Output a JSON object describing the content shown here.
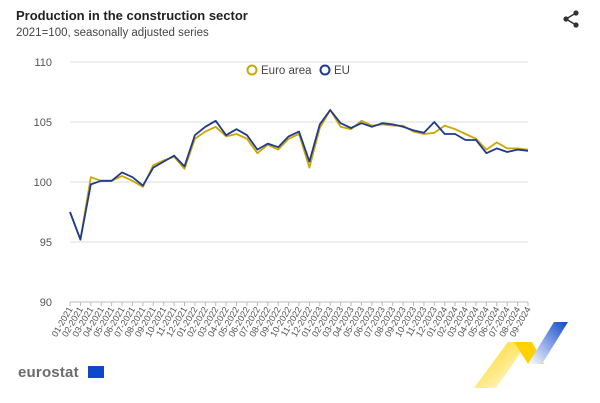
{
  "header": {
    "title": "Production in the construction sector",
    "subtitle": "2021=100, seasonally adjusted series"
  },
  "footer": {
    "logo_text": "eurostat"
  },
  "colors": {
    "euro_area": "#c9a800",
    "eu": "#1f3a93",
    "grid": "#dddddd",
    "axis": "#bbbbbb",
    "text": "#555555"
  },
  "icons": {
    "share": "share-icon",
    "flag": "eu-flag-icon",
    "brand": "eurostat-brand-stripes"
  },
  "chart_data": {
    "type": "line",
    "title": "Production in the construction sector",
    "subtitle": "2021=100, seasonally adjusted series",
    "ylim": [
      90,
      110
    ],
    "yticks": [
      90,
      95,
      100,
      105,
      110
    ],
    "grid": true,
    "legend": "top",
    "x": [
      "01-2021",
      "02-2021",
      "03-2021",
      "04-2021",
      "05-2021",
      "06-2021",
      "07-2021",
      "08-2021",
      "09-2021",
      "10-2021",
      "11-2021",
      "12-2021",
      "01-2022",
      "02-2022",
      "03-2022",
      "04-2022",
      "05-2022",
      "06-2022",
      "07-2022",
      "08-2022",
      "09-2022",
      "10-2022",
      "11-2022",
      "12-2022",
      "01-2023",
      "02-2023",
      "03-2023",
      "04-2023",
      "05-2023",
      "06-2023",
      "07-2023",
      "08-2023",
      "09-2023",
      "10-2023",
      "11-2023",
      "12-2023",
      "01-2024",
      "02-2024",
      "03-2024",
      "04-2024",
      "05-2024",
      "06-2024",
      "07-2024",
      "08-2024",
      "09-2024"
    ],
    "series": [
      {
        "name": "Euro area",
        "color": "#c9a800",
        "values": [
          97.5,
          95.2,
          100.4,
          100.1,
          100.1,
          100.5,
          100.1,
          99.6,
          101.4,
          101.8,
          102.1,
          101.1,
          103.6,
          104.2,
          104.6,
          103.8,
          104.0,
          103.6,
          102.4,
          103.1,
          102.7,
          103.6,
          104.0,
          101.2,
          104.5,
          106.0,
          104.6,
          104.4,
          105.1,
          104.7,
          104.8,
          104.7,
          104.7,
          104.2,
          104.0,
          104.1,
          104.7,
          104.4,
          104.0,
          103.6,
          102.7,
          103.3,
          102.8,
          102.8,
          102.7
        ]
      },
      {
        "name": "EU",
        "color": "#1f3a93",
        "values": [
          97.5,
          95.2,
          99.8,
          100.1,
          100.1,
          100.8,
          100.4,
          99.7,
          101.2,
          101.7,
          102.2,
          101.3,
          103.9,
          104.6,
          105.1,
          103.9,
          104.4,
          103.9,
          102.7,
          103.2,
          102.9,
          103.8,
          104.2,
          101.7,
          104.8,
          106.0,
          104.9,
          104.5,
          104.9,
          104.6,
          104.9,
          104.8,
          104.6,
          104.3,
          104.1,
          105.0,
          104.0,
          104.0,
          103.5,
          103.5,
          102.4,
          102.8,
          102.5,
          102.7,
          102.6
        ]
      }
    ]
  }
}
